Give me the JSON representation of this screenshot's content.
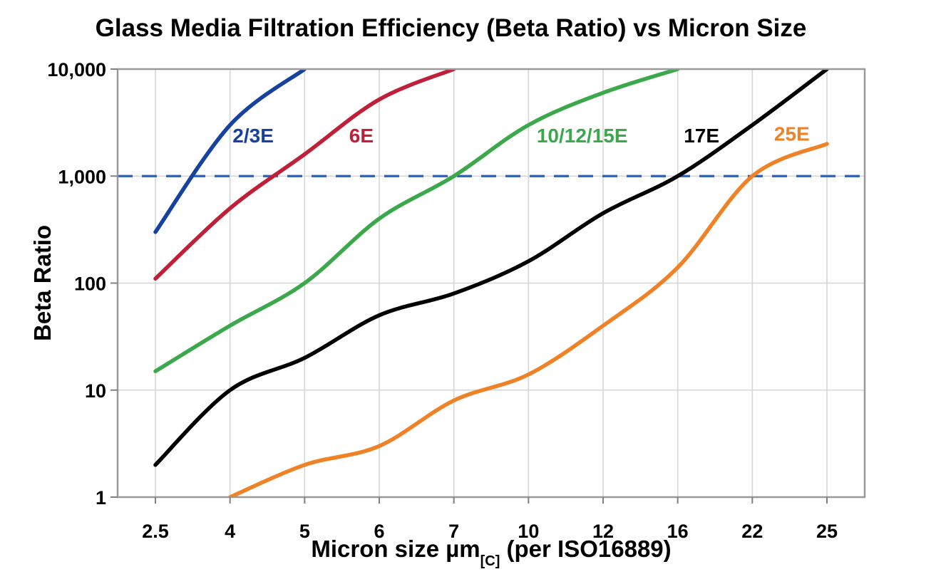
{
  "title": "Glass Media Filtration Efficiency (Beta Ratio) vs Micron Size",
  "axes": {
    "y_label": "Beta Ratio",
    "x_label_main": "Micron size µm",
    "x_label_sub": "[C]",
    "x_label_rest": " (per ISO16889)"
  },
  "colors": {
    "grid": "#d5d5d5",
    "border": "#999999",
    "tick": "#808080",
    "reference_line": "#3060b5",
    "text": "#000000"
  },
  "chart_data": {
    "type": "line",
    "title": "Glass Media Filtration Efficiency (Beta Ratio) vs Micron Size",
    "xlabel": "Micron size µm[C] (per ISO16889)",
    "ylabel": "Beta Ratio",
    "x_scale": "categorical",
    "y_scale": "log",
    "grid": true,
    "legend_position": "inline-labels",
    "categories": [
      "2.5",
      "4",
      "5",
      "6",
      "7",
      "10",
      "12",
      "16",
      "22",
      "25"
    ],
    "category_values": [
      2.5,
      4,
      5,
      6,
      7,
      10,
      12,
      16,
      22,
      25
    ],
    "y_ticks": [
      1,
      10,
      100,
      1000,
      10000
    ],
    "y_tick_labels": [
      "1",
      "10",
      "100",
      "1,000",
      "10,000"
    ],
    "ylim": [
      1,
      10000
    ],
    "reference_line": {
      "beta": 1000,
      "style": "dashed"
    },
    "series": [
      {
        "name": "2/3E",
        "color": "#16419e",
        "points": [
          [
            2.5,
            300
          ],
          [
            4,
            3000
          ],
          [
            5,
            10000
          ]
        ],
        "label_at": {
          "xi": 1.31,
          "beta": 2400
        }
      },
      {
        "name": "6E",
        "color": "#c01f38",
        "points": [
          [
            2.5,
            110
          ],
          [
            4,
            500
          ],
          [
            5,
            1600
          ],
          [
            6,
            5200
          ],
          [
            7,
            10000
          ]
        ],
        "label_at": {
          "xi": 2.76,
          "beta": 2400
        }
      },
      {
        "name": "10/12/15E",
        "color": "#3ba84c",
        "points": [
          [
            2.5,
            15
          ],
          [
            4,
            40
          ],
          [
            5,
            100
          ],
          [
            6,
            400
          ],
          [
            7,
            1000
          ],
          [
            10,
            3000
          ],
          [
            12,
            6000
          ],
          [
            16,
            10000
          ]
        ],
        "label_at": {
          "xi": 5.72,
          "beta": 2400
        }
      },
      {
        "name": "17E",
        "color": "#000000",
        "points": [
          [
            2.5,
            2
          ],
          [
            4,
            10
          ],
          [
            5,
            20
          ],
          [
            6,
            50
          ],
          [
            7,
            80
          ],
          [
            10,
            160
          ],
          [
            12,
            450
          ],
          [
            16,
            1000
          ],
          [
            22,
            3000
          ],
          [
            25,
            10000
          ]
        ],
        "label_at": {
          "xi": 7.32,
          "beta": 2400
        }
      },
      {
        "name": "25E",
        "color": "#ef8226",
        "points": [
          [
            4,
            1
          ],
          [
            5,
            2
          ],
          [
            6,
            3
          ],
          [
            7,
            8
          ],
          [
            10,
            14
          ],
          [
            12,
            40
          ],
          [
            16,
            140
          ],
          [
            22,
            1000
          ],
          [
            25,
            2000
          ]
        ],
        "label_at": {
          "xi": 8.53,
          "beta": 2500
        }
      }
    ]
  }
}
